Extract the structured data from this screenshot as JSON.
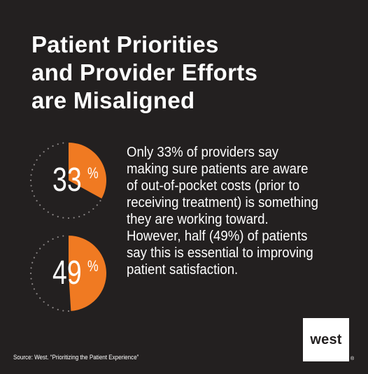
{
  "title": {
    "line1": "Patient Priorities",
    "line2": "and Provider Efforts",
    "line3": "are Misaligned"
  },
  "chart_data": [
    {
      "type": "pie",
      "values": [
        33,
        67
      ],
      "label": "33",
      "suffix": "%"
    },
    {
      "type": "pie",
      "values": [
        49,
        51
      ],
      "label": "49",
      "suffix": "%"
    }
  ],
  "body": {
    "lines": [
      "Only 33% of providers say",
      "making sure patients are aware",
      "of out-of-pocket costs (prior to",
      "receiving treatment) is something",
      "they are working toward.",
      "However, half (49%) of patients",
      "say this is essential to improving",
      "patient satisfaction."
    ]
  },
  "source": "Source:  West. “Prioritizing the Patient Experience”",
  "logo": {
    "text": "west",
    "reg": "®"
  },
  "colors": {
    "background": "#232020",
    "accent": "#f07a22",
    "dots": "#8a8585"
  }
}
